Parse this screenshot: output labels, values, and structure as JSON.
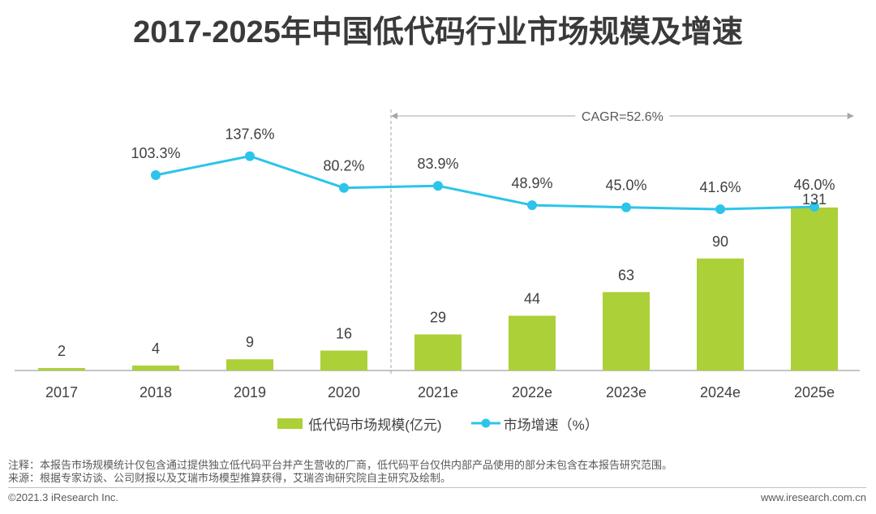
{
  "chart_data": {
    "type": "bar",
    "title": "2017-2025年中国低代码行业市场规模及增速",
    "categories": [
      "2017",
      "2018",
      "2019",
      "2020",
      "2021e",
      "2022e",
      "2023e",
      "2024e",
      "2025e"
    ],
    "series": [
      {
        "name": "低代码市场规模(亿元)",
        "type": "bar",
        "color": "#abd038",
        "values": [
          2,
          4,
          9,
          16,
          29,
          44,
          63,
          90,
          131
        ]
      },
      {
        "name": "市场增速（%）",
        "type": "line",
        "color": "#2cc4ea",
        "values": [
          null,
          103.3,
          137.6,
          80.2,
          83.9,
          48.9,
          45.0,
          41.6,
          46.0
        ],
        "value_labels": [
          null,
          "103.3%",
          "137.6%",
          "80.2%",
          "83.9%",
          "48.9%",
          "45.0%",
          "41.6%",
          "46.0%"
        ]
      }
    ],
    "ylim": [
      0,
      200
    ],
    "y2lim": [
      -250,
      200
    ],
    "grid": false,
    "legend": "bottom",
    "annotations": [
      {
        "text": "CAGR=52.6%",
        "from_index": 4,
        "to_index": 8
      }
    ]
  },
  "notes": {
    "note": "注释：本报告市场规模统计仅包含通过提供独立低代码平台并产生营收的厂商，低代码平台仅供内部产品使用的部分未包含在本报告研究范围。",
    "source": "来源：根据专家访谈、公司财报以及艾瑞市场模型推算获得，艾瑞咨询研究院自主研究及绘制。"
  },
  "footer": {
    "copyright": "©2021.3 iResearch Inc.",
    "website": "www.iresearch.com.cn"
  },
  "colors": {
    "axis": "#b0b0b0",
    "annotation": "#a6a6a6",
    "label_text": "#404040"
  }
}
